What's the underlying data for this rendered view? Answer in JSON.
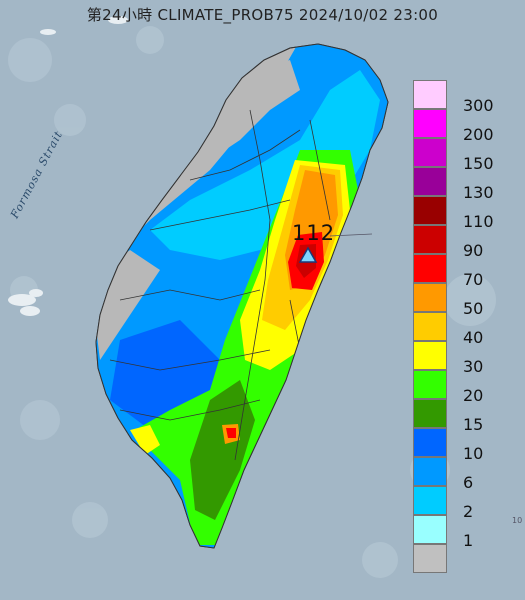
{
  "title": "第24小時  CLIMATE_PROB75 2024/10/02 23:00",
  "strait_label": "Formosa Strait",
  "peak": {
    "label": "112"
  },
  "corner_mark": "10",
  "legend": [
    {
      "label": "300",
      "color": "#ffccff"
    },
    {
      "label": "200",
      "color": "#ff00ff"
    },
    {
      "label": "150",
      "color": "#cc00cc"
    },
    {
      "label": "130",
      "color": "#990099"
    },
    {
      "label": "110",
      "color": "#990000"
    },
    {
      "label": "90",
      "color": "#cc0000"
    },
    {
      "label": "70",
      "color": "#ff0000"
    },
    {
      "label": "50",
      "color": "#ff9900"
    },
    {
      "label": "40",
      "color": "#ffcc00"
    },
    {
      "label": "30",
      "color": "#ffff00"
    },
    {
      "label": "20",
      "color": "#33ff00"
    },
    {
      "label": "15",
      "color": "#339900"
    },
    {
      "label": "10",
      "color": "#0066ff"
    },
    {
      "label": "6",
      "color": "#0099ff"
    },
    {
      "label": "2",
      "color": "#00ccff"
    },
    {
      "label": "1",
      "color": "#99ffff"
    },
    {
      "label": "",
      "color": "#c0c0c0"
    }
  ]
}
